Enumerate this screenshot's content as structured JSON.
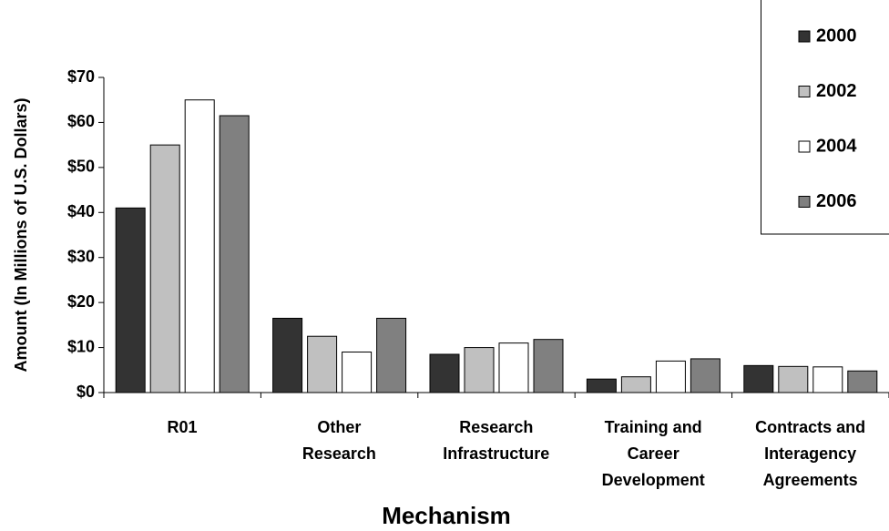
{
  "chart_data": {
    "type": "bar",
    "y_label": "Amount (In Millions of U.S. Dollars)",
    "x_label": "Mechanism",
    "categories": [
      "R01",
      "Other\nResearch",
      "Research\nInfrastructure",
      "Training and\nCareer\nDevelopment",
      "Contracts and\nInteragency\nAgreements"
    ],
    "series": [
      {
        "name": "2000",
        "color": "#333333",
        "values": [
          41,
          16.5,
          8.5,
          3,
          6
        ]
      },
      {
        "name": "2002",
        "color": "#c0c0c0",
        "values": [
          55,
          12.5,
          10,
          3.5,
          5.8
        ]
      },
      {
        "name": "2004",
        "color": "#ffffff",
        "values": [
          65,
          9,
          11,
          7,
          5.7
        ]
      },
      {
        "name": "2006",
        "color": "#808080",
        "values": [
          61.5,
          16.5,
          11.8,
          7.5,
          4.8
        ]
      }
    ],
    "ylim": [
      0,
      70
    ],
    "yticks": [
      {
        "value": 0,
        "label": "$0"
      },
      {
        "value": 10,
        "label": "$10"
      },
      {
        "value": 20,
        "label": "$20"
      },
      {
        "value": 30,
        "label": "$30"
      },
      {
        "value": 40,
        "label": "$40"
      },
      {
        "value": 50,
        "label": "$50"
      },
      {
        "value": 60,
        "label": "$60"
      },
      {
        "value": 70,
        "label": "$70"
      }
    ],
    "grid": false,
    "legend": "top-right"
  }
}
